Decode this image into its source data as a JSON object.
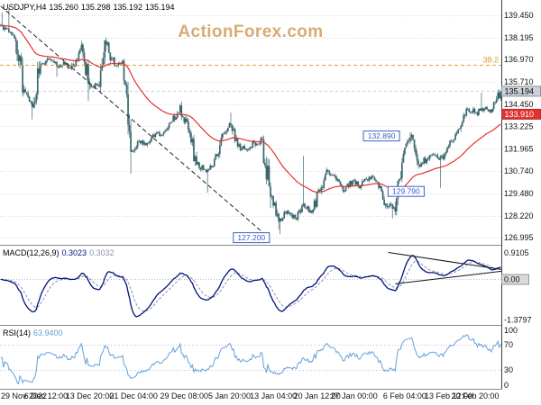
{
  "header": {
    "symbol_period": "USDJPY,H4",
    "open": "135.260",
    "high": "135.298",
    "low": "135.192",
    "close": "135.194"
  },
  "watermark": {
    "text": "ActionForex.com",
    "color": "#d8ab74"
  },
  "indicator_labels": {
    "macd": {
      "name": "MACD(12,26,9)",
      "value_main": "0.3023",
      "value_signal": "0.3032"
    },
    "rsi": {
      "name": "RSI(14)",
      "value": "63.9400"
    }
  },
  "colors": {
    "candle": "#3b666e",
    "ma": "#e03232",
    "macd_main": "#00137f",
    "macd_signal": "#8a93a6",
    "rsi": "#64a0dc",
    "fib": "#e2a03c",
    "annotation": "#3f5fbf",
    "grid": "#d6d6d6",
    "watermark": "#d8ab74"
  },
  "chart_data": {
    "type": "candlestick",
    "symbol": "USDJPY",
    "timeframe": "H4",
    "visible_range": {
      "from": "29 Nov 2022",
      "to": "21 Feb 2023"
    },
    "current_price": 135.194,
    "price_axis_range": [
      126.6,
      140.3
    ],
    "first_open": 138.9,
    "axis": {
      "price_ticks": [
        139.45,
        138.195,
        136.97,
        135.71,
        134.45,
        133.225,
        131.965,
        130.74,
        129.48,
        128.22,
        126.995
      ],
      "macd_ticks": [
        {
          "value": 0.9105,
          "label": "0.9105"
        },
        {
          "value": 0.0,
          "label": "0.00",
          "boxed": true
        },
        {
          "value": -1.3797,
          "label": "-1.3797"
        }
      ],
      "rsi_ticks": [
        100,
        70,
        30,
        0
      ],
      "current_price_label": {
        "text": "135.194",
        "price": 135.194
      },
      "ma_label": {
        "text": "133.910",
        "price": 133.91
      },
      "fib_label": {
        "text": "38.2",
        "price": 136.65
      }
    },
    "x_labels": [
      {
        "text": "29 Nov 2022",
        "bar": 0
      },
      {
        "text": "6 Dec 12:00",
        "bar": 33
      },
      {
        "text": "13 Dec 20:00",
        "bar": 65
      },
      {
        "text": "21 Dec 04:00",
        "bar": 97
      },
      {
        "text": "29 Dec 08:00",
        "bar": 134
      },
      {
        "text": "5 Jan 20:00",
        "bar": 167
      },
      {
        "text": "13 Jan 04:00",
        "bar": 199
      },
      {
        "text": "20 Jan 12:00",
        "bar": 231
      },
      {
        "text": "27 Jan 00:00",
        "bar": 258
      },
      {
        "text": "6 Feb 04:00",
        "bar": 295
      },
      {
        "text": "13 Feb 12:00",
        "bar": 327
      },
      {
        "text": "20 Feb 20:00",
        "bar": 359
      }
    ],
    "daily_anchors": [
      [
        "29 Nov",
        138.7,
        139.6,
        null
      ],
      [
        "30 Nov",
        138.0,
        139.9,
        137.3
      ],
      [
        "1 Dec",
        135.3,
        null,
        null
      ],
      [
        "2 Dec",
        134.3,
        null,
        133.62
      ],
      [
        "5 Dec",
        136.7,
        null,
        null
      ],
      [
        "6 Dec",
        137.0,
        null,
        null
      ],
      [
        "7 Dec",
        136.6,
        null,
        136.0
      ],
      [
        "8 Dec",
        136.7,
        null,
        null
      ],
      [
        "9 Dec",
        136.6,
        null,
        null
      ],
      [
        "12 Dec",
        137.8,
        null,
        null
      ],
      [
        "13 Dec",
        135.6,
        137.9,
        134.65
      ],
      [
        "14 Dec",
        135.5,
        null,
        null
      ],
      [
        "15 Dec",
        137.8,
        null,
        null
      ],
      [
        "16 Dec",
        136.6,
        null,
        null
      ],
      [
        "19 Dec",
        136.9,
        null,
        null
      ],
      [
        "20 Dec",
        131.8,
        null,
        130.58
      ],
      [
        "21 Dec",
        132.4,
        null,
        null
      ],
      [
        "22 Dec",
        132.3,
        null,
        null
      ],
      [
        "23 Dec",
        132.8,
        null,
        null
      ],
      [
        "26 Dec",
        132.9,
        null,
        null
      ],
      [
        "27 Dec",
        133.5,
        null,
        null
      ],
      [
        "28 Dec",
        134.4,
        134.5,
        null
      ],
      [
        "29 Dec",
        133.0,
        null,
        null
      ],
      [
        "30 Dec",
        131.1,
        null,
        null
      ],
      [
        "2 Jan",
        130.8,
        null,
        null
      ],
      [
        "3 Jan",
        131.0,
        null,
        129.52
      ],
      [
        "4 Jan",
        132.6,
        null,
        null
      ],
      [
        "5 Jan",
        133.4,
        null,
        null
      ],
      [
        "6 Jan",
        132.1,
        134.0,
        null
      ],
      [
        "9 Jan",
        131.9,
        null,
        null
      ],
      [
        "10 Jan",
        132.3,
        null,
        null
      ],
      [
        "11 Jan",
        132.5,
        null,
        null
      ],
      [
        "12 Jan",
        129.3,
        null,
        128.65
      ],
      [
        "13 Jan",
        127.9,
        null,
        127.46
      ],
      [
        "16 Jan",
        128.5,
        null,
        127.21
      ],
      [
        "17 Jan",
        128.1,
        null,
        null
      ],
      [
        "18 Jan",
        128.9,
        131.58,
        127.9
      ],
      [
        "19 Jan",
        128.4,
        null,
        null
      ],
      [
        "20 Jan",
        129.6,
        null,
        null
      ],
      [
        "23 Jan",
        130.7,
        null,
        null
      ],
      [
        "24 Jan",
        130.2,
        null,
        null
      ],
      [
        "25 Jan",
        129.6,
        null,
        null
      ],
      [
        "26 Jan",
        130.2,
        null,
        null
      ],
      [
        "27 Jan",
        129.9,
        null,
        null
      ],
      [
        "30 Jan",
        130.4,
        null,
        null
      ],
      [
        "31 Jan",
        130.1,
        null,
        null
      ],
      [
        "1 Feb",
        128.9,
        null,
        null
      ],
      [
        "2 Feb",
        128.7,
        null,
        128.08
      ],
      [
        "3 Feb",
        131.2,
        null,
        null
      ],
      [
        "6 Feb",
        132.6,
        132.9,
        null
      ],
      [
        "7 Feb",
        131.1,
        null,
        null
      ],
      [
        "8 Feb",
        131.4,
        null,
        null
      ],
      [
        "9 Feb",
        131.6,
        null,
        null
      ],
      [
        "10 Feb",
        131.4,
        null,
        129.79
      ],
      [
        "13 Feb",
        132.4,
        null,
        null
      ],
      [
        "14 Feb",
        133.1,
        null,
        null
      ],
      [
        "15 Feb",
        134.2,
        null,
        null
      ],
      [
        "16 Feb",
        134.0,
        null,
        null
      ],
      [
        "17 Feb",
        134.2,
        135.11,
        null
      ],
      [
        "20 Feb",
        134.2,
        null,
        null
      ],
      [
        "21 Feb",
        135.194,
        135.298,
        134.6
      ]
    ],
    "overlays": {
      "ma": {
        "type": "ema",
        "period": 55
      }
    },
    "panels": {
      "macd": {
        "params": [
          12,
          26,
          9
        ],
        "current_main": 0.3023,
        "current_signal": 0.3032,
        "display_range": [
          -1.55,
          1.15
        ]
      },
      "rsi": {
        "period": 14,
        "current": 63.94,
        "levels": [
          30,
          70
        ],
        "display_range": [
          0,
          100
        ]
      }
    },
    "annotations": {
      "price_boxes": [
        {
          "text": "127.200",
          "bar": 183,
          "price": 127.2
        },
        {
          "text": "132.890",
          "bar": 278,
          "price": 132.89
        },
        {
          "text": "129.790",
          "bar": 296,
          "price": 129.79
        }
      ],
      "trendline": {
        "bar1": 0,
        "price1": 139.95,
        "bar2": 192,
        "price2": 127.25
      },
      "macd_trendlines": [
        {
          "bar1": 283,
          "v1": 0.92,
          "bar2": 366,
          "v2": 0.34
        },
        {
          "bar1": 288,
          "v1": -0.15,
          "bar2": 366,
          "v2": 0.28
        }
      ]
    }
  }
}
